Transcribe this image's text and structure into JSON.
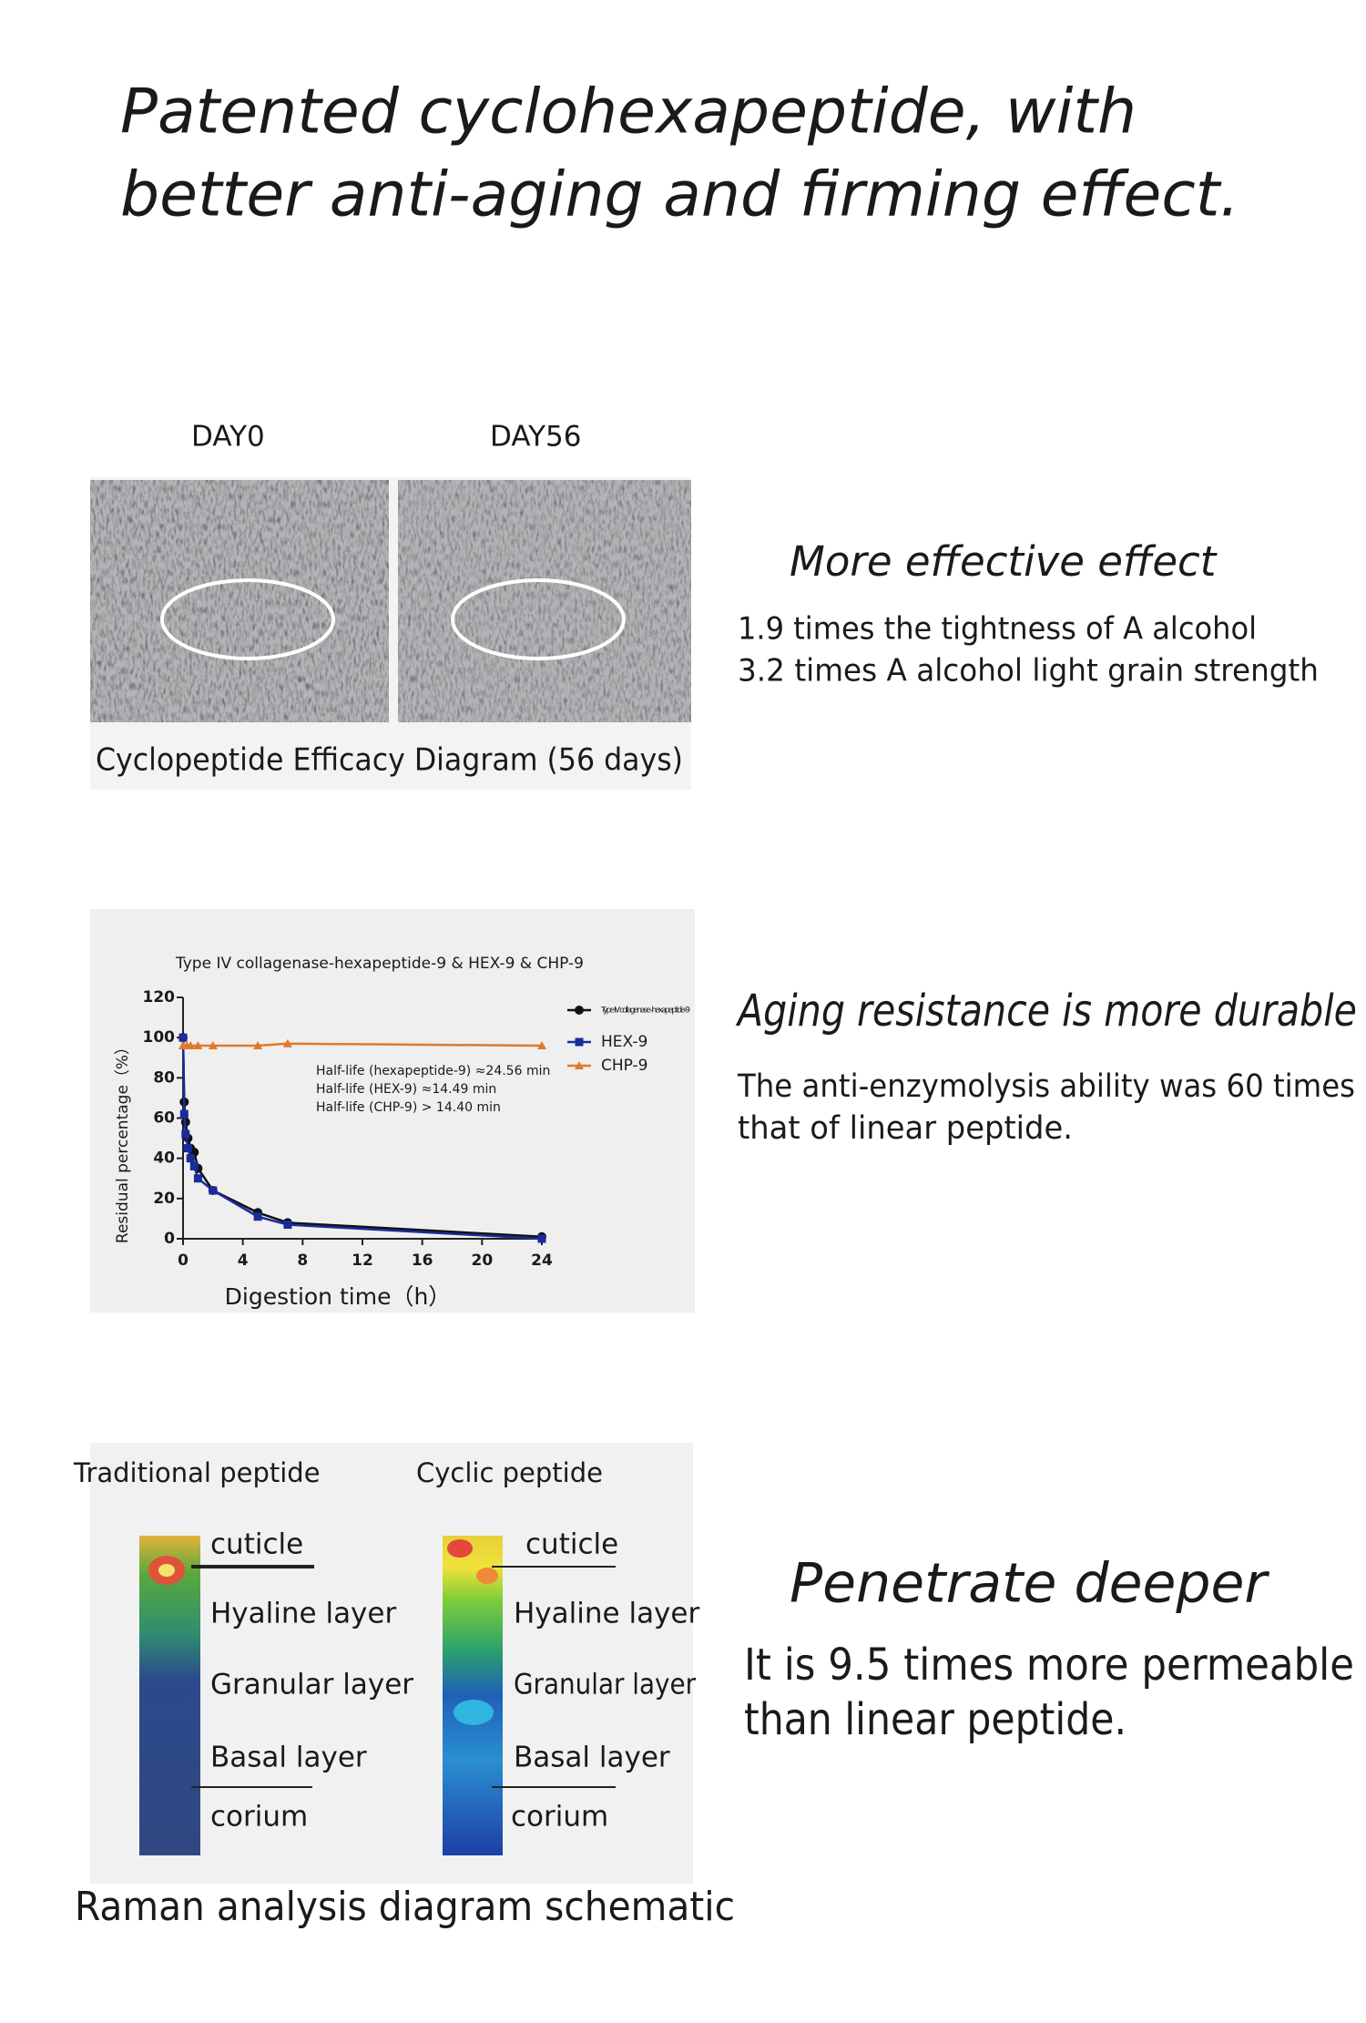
{
  "header": {
    "title": [
      "Patented cyclohexapeptide, with",
      "better anti-aging and firming effect."
    ]
  },
  "efficacy": {
    "labels": [
      "DAY0",
      "DAY56"
    ],
    "caption": "Cyclopeptide Efficacy Diagram (56 days)",
    "heading": "More effective effect",
    "lines": [
      "1.9 times the tightness of A alcohol",
      "3.2 times A alcohol light grain strength"
    ]
  },
  "durability": {
    "heading": "Aging resistance is more durable",
    "lines": [
      "The anti-enzymolysis ability was 60 times",
      " that of linear peptide."
    ]
  },
  "chart_data": {
    "type": "line",
    "title": "Type IV collagenase-hexapeptide-9 & HEX-9 & CHP-9",
    "x_label": "Digestion time（h）",
    "y_label": "Residual percentage（%）",
    "xlim": [
      0,
      24
    ],
    "ylim": [
      0,
      120
    ],
    "xticks": [
      0,
      4,
      8,
      12,
      16,
      20,
      24
    ],
    "yticks": [
      0,
      20,
      40,
      60,
      80,
      100,
      120
    ],
    "annotations": [
      "Half-life (hexapeptide-9) ≈24.56 min",
      "Half-life (HEX-9) ≈14.49 min",
      "Half-life (CHP-9) > 14.40 min"
    ],
    "series": [
      {
        "name": "Type IV collagenase -hexapeptide-9",
        "color": "#111111",
        "marker": "circle",
        "x": [
          0,
          0.08,
          0.17,
          0.33,
          0.5,
          0.75,
          1,
          2,
          5,
          7,
          24
        ],
        "values": [
          100,
          68,
          58,
          50,
          45,
          43,
          35,
          24,
          13,
          8,
          1
        ]
      },
      {
        "name": "HEX-9",
        "color": "#1a2b9c",
        "marker": "square",
        "x": [
          0,
          0.08,
          0.17,
          0.33,
          0.5,
          0.75,
          1,
          2,
          5,
          7,
          24
        ],
        "values": [
          100,
          62,
          52,
          45,
          40,
          36,
          30,
          24,
          11,
          7,
          0
        ]
      },
      {
        "name": "CHP-9",
        "color": "#e07a2a",
        "marker": "triangle",
        "x": [
          0,
          0.25,
          0.5,
          1,
          2,
          5,
          7,
          24
        ],
        "values": [
          96,
          96,
          96,
          96,
          96,
          96,
          97,
          96
        ]
      }
    ]
  },
  "penetration": {
    "labels": [
      "Traditional peptide",
      "Cyclic peptide"
    ],
    "layers": [
      "cuticle",
      "Hyaline layer",
      "Granular layer",
      "Basal layer",
      "corium"
    ],
    "caption": "Raman analysis diagram schematic",
    "heading": "Penetrate deeper",
    "lines": [
      "It is 9.5 times more permeable",
      "than linear peptide."
    ]
  }
}
